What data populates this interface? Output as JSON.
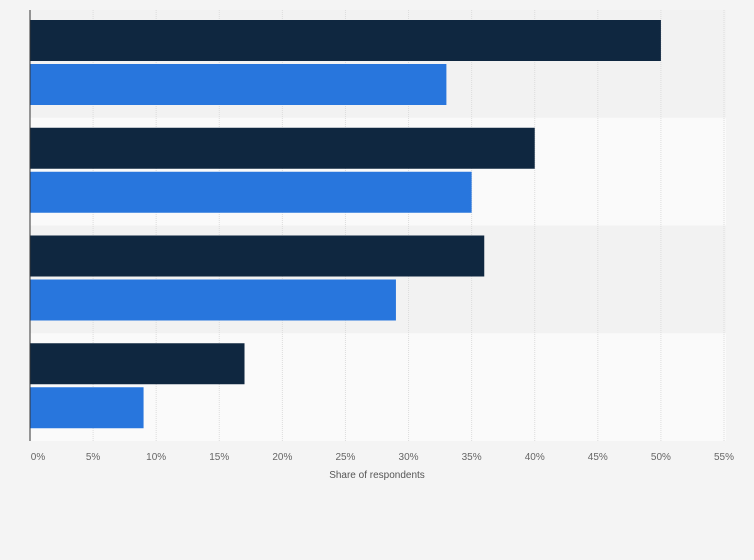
{
  "chart_data": {
    "type": "bar",
    "orientation": "horizontal",
    "categories": [
      "",
      "",
      "",
      ""
    ],
    "series": [
      {
        "values": [
          50,
          40,
          36,
          17
        ],
        "color": "#0f2740"
      },
      {
        "values": [
          33,
          35,
          29,
          9
        ],
        "color": "#2876dd"
      }
    ],
    "xlabel": "Share of respondents",
    "xlim": [
      0,
      55
    ],
    "xticks": [
      "0%",
      "5%",
      "10%",
      "15%",
      "20%",
      "25%",
      "30%",
      "35%",
      "40%",
      "45%",
      "50%",
      "55%"
    ],
    "grid": true,
    "legend": "none"
  }
}
